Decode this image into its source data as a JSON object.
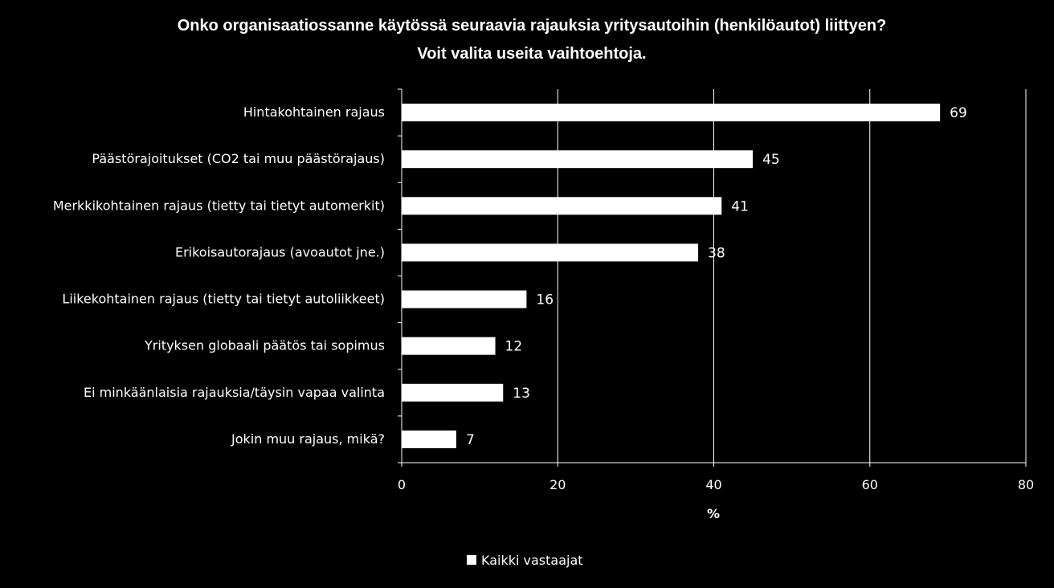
{
  "chart_data": {
    "type": "bar",
    "orientation": "horizontal",
    "title": "Onko organisaatiossanne käytössä seuraavia rajauksia yritysautoihin (henkilöautot) liittyen?",
    "subtitle": "Voit valita useita vaihtoehtoja.",
    "categories": [
      "Hintakohtainen rajaus",
      "Päästörajoitukset (CO2 tai muu päästörajaus)",
      "Merkkikohtainen rajaus (tietty tai tietyt automerkit)",
      "Erikoisautorajaus (avoautot jne.)",
      "Liikekohtainen rajaus (tietty tai tietyt autoliikkeet)",
      "Yrityksen globaali päätös tai sopimus",
      "Ei minkäänlaisia rajauksia/täysin vapaa valinta",
      "Jokin muu rajaus, mikä?"
    ],
    "series": [
      {
        "name": "Kaikki vastaajat",
        "values": [
          69,
          45,
          41,
          38,
          16,
          12,
          13,
          7
        ],
        "color": "#ffffff"
      }
    ],
    "data_labels": [
      "69",
      "45",
      "41",
      "38",
      "16",
      "12",
      "13",
      "7"
    ],
    "xlabel": "%",
    "ylabel": "",
    "xlim": [
      0,
      80
    ],
    "xticks": [
      "0",
      "20",
      "40",
      "60",
      "80"
    ],
    "grid": "vertical",
    "legend_position": "bottom",
    "colors": {
      "background": "#000000",
      "bars": "#ffffff",
      "grid": "#ffffff",
      "text": "#ffffff"
    }
  }
}
